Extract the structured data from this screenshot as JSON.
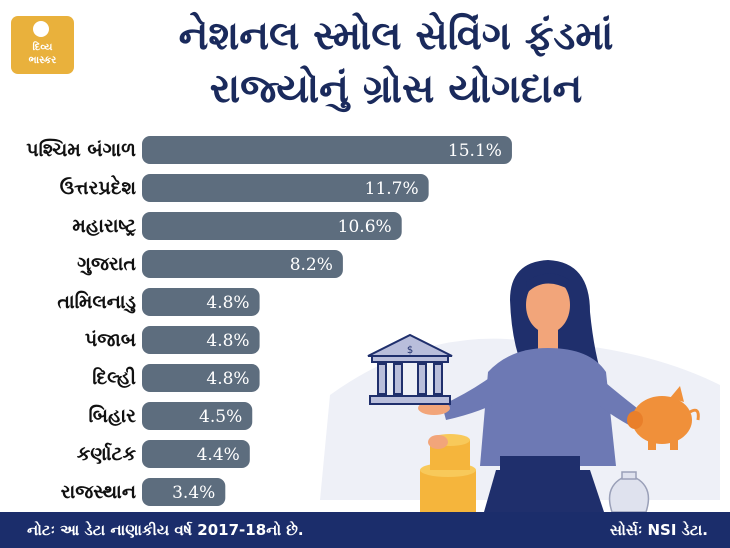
{
  "header": {
    "logo_line1": "દિવ્ય",
    "logo_line2": "ભાસ્કર",
    "title_line1": "નેશનલ સ્મોલ સેવિંગ ફંડમાં",
    "title_line2": "રાજ્યોનું ગ્રોસ યોગદાન"
  },
  "chart_data": {
    "type": "bar",
    "orientation": "horizontal",
    "title": "નેશનલ સ્મોલ સેવિંગ ફંડમાં રાજ્યોનું ગ્રોસ યોગદાન",
    "categories": [
      "પશ્ચિમ બંગાળ",
      "ઉત્તરપ્રદેશ",
      "મહારાષ્ટ્ર",
      "ગુજરાત",
      "તામિલનાડુ",
      "પંજાબ",
      "દિલ્હી",
      "બિહાર",
      "કર્ણાટક",
      "રાજસ્થાન"
    ],
    "values": [
      15.1,
      11.7,
      10.6,
      8.2,
      4.8,
      4.8,
      4.8,
      4.5,
      4.4,
      3.4
    ],
    "value_labels": [
      "15.1%",
      "11.7%",
      "10.6%",
      "8.2%",
      "4.8%",
      "4.8%",
      "4.8%",
      "4.5%",
      "4.4%",
      "3.4%"
    ],
    "bar_color": "#5d6d7e",
    "label_color": "#ffffff",
    "grid": false
  },
  "footer": {
    "note": "નોટઃ આ ડેટા નાણાકીય વર્ષ 2017-18નો છે.",
    "source": "સોર્સઃ NSI ડેટા."
  },
  "colors": {
    "title": "#1a2a5c",
    "footer_bg": "#1b2d6b",
    "logo_bg": "#e9b13c"
  }
}
